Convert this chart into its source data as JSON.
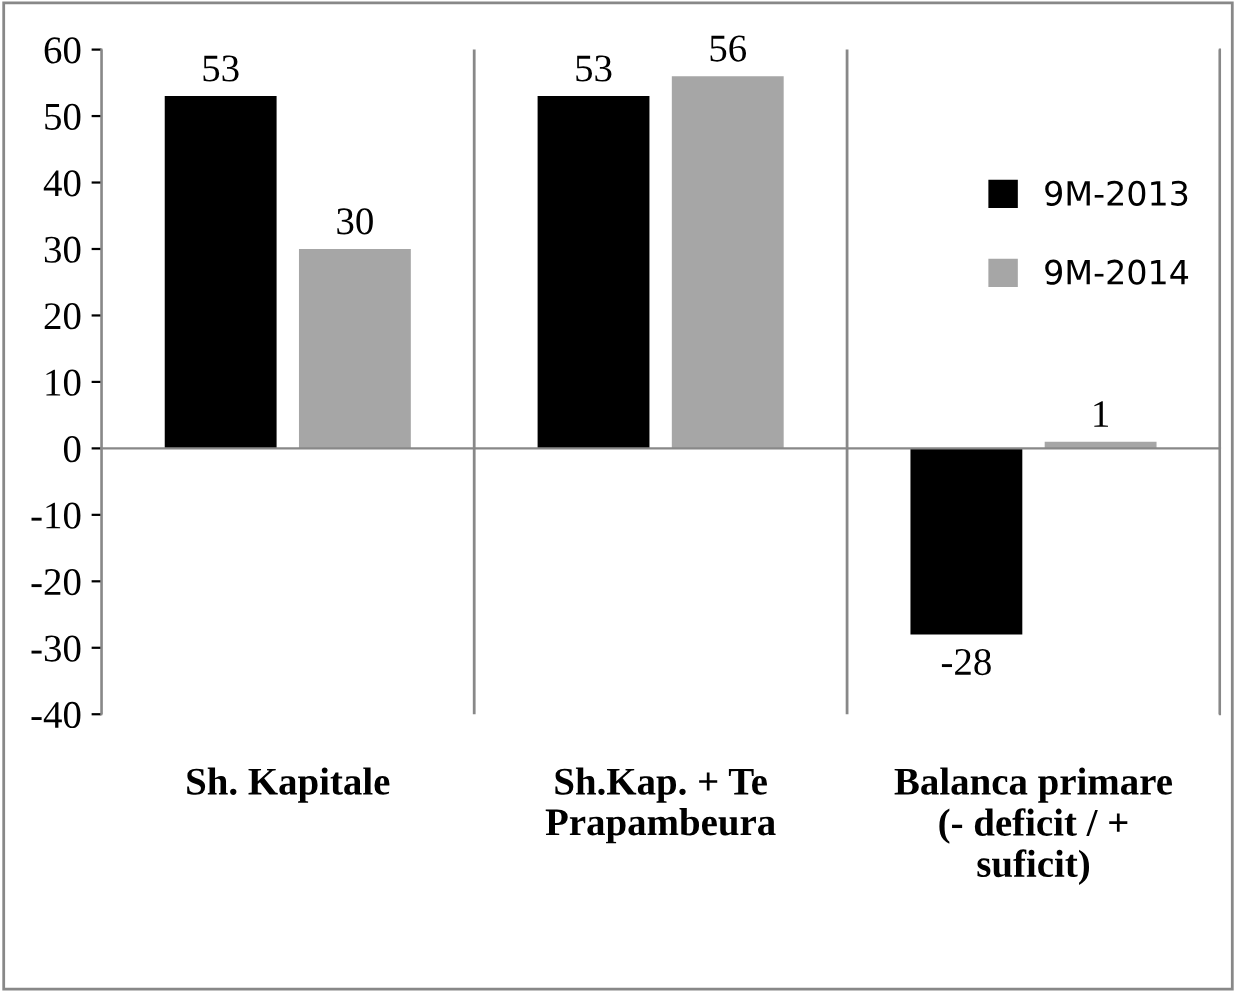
{
  "chart_data": {
    "type": "bar",
    "categories": [
      "Sh. Kapitale",
      "Sh.Kap. + Te\nPrapambeura",
      "Balanca primare\n(- deficit / +\nsuficit)"
    ],
    "series": [
      {
        "name": "9M-2013",
        "color": "#000000",
        "values": [
          53,
          53,
          -28
        ]
      },
      {
        "name": "9M-2014",
        "color": "#a6a6a6",
        "values": [
          30,
          56,
          1
        ]
      }
    ],
    "ylim": [
      -40,
      60
    ],
    "yticks": [
      -40,
      -30,
      -20,
      -10,
      0,
      10,
      20,
      30,
      40,
      50,
      60
    ],
    "grid": "x",
    "legend": "right",
    "data_labels": true
  }
}
